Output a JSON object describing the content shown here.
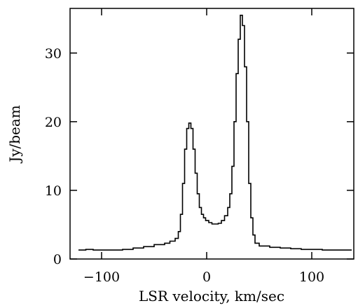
{
  "chart_data": {
    "type": "line",
    "title": "",
    "xlabel": "LSR velocity, km/sec",
    "ylabel": "Jy/beam",
    "xlim": [
      -130,
      140
    ],
    "ylim": [
      0,
      36.5
    ],
    "xticks": [
      -100,
      0,
      100
    ],
    "xtick_labels": [
      "−100",
      "0",
      "100"
    ],
    "yticks": [
      0,
      10,
      20,
      30
    ],
    "ytick_labels": [
      "0",
      "10",
      "20",
      "30"
    ],
    "grid": false,
    "legend": "none",
    "line_style": "step",
    "line_color": "#000000",
    "series": [
      {
        "x": [
          -122,
          -115,
          -108,
          -100,
          -90,
          -80,
          -70,
          -60,
          -50,
          -40,
          -35,
          -30,
          -27,
          -25,
          -23,
          -21,
          -19,
          -17,
          -15,
          -13,
          -11,
          -9,
          -7,
          -5,
          -3,
          -1,
          2,
          5,
          8,
          11,
          14,
          17,
          20,
          22,
          24,
          26,
          28,
          30,
          32,
          34,
          36,
          38,
          40,
          42,
          44,
          46,
          50,
          60,
          70,
          80,
          90,
          100,
          110,
          120,
          130,
          138
        ],
        "y": [
          1.3,
          1.4,
          1.3,
          1.3,
          1.3,
          1.4,
          1.6,
          1.8,
          2.1,
          2.3,
          2.6,
          3.0,
          4.0,
          6.5,
          11.0,
          16.0,
          19.0,
          19.8,
          19.0,
          16.0,
          12.5,
          9.5,
          7.5,
          6.5,
          6.0,
          5.6,
          5.3,
          5.1,
          5.1,
          5.2,
          5.6,
          6.3,
          7.5,
          9.5,
          13.5,
          20.0,
          27.0,
          32.0,
          35.5,
          34.0,
          28.0,
          20.0,
          11.0,
          6.0,
          3.5,
          2.3,
          1.9,
          1.7,
          1.6,
          1.5,
          1.4,
          1.4,
          1.3,
          1.3,
          1.3,
          1.3
        ]
      }
    ]
  }
}
